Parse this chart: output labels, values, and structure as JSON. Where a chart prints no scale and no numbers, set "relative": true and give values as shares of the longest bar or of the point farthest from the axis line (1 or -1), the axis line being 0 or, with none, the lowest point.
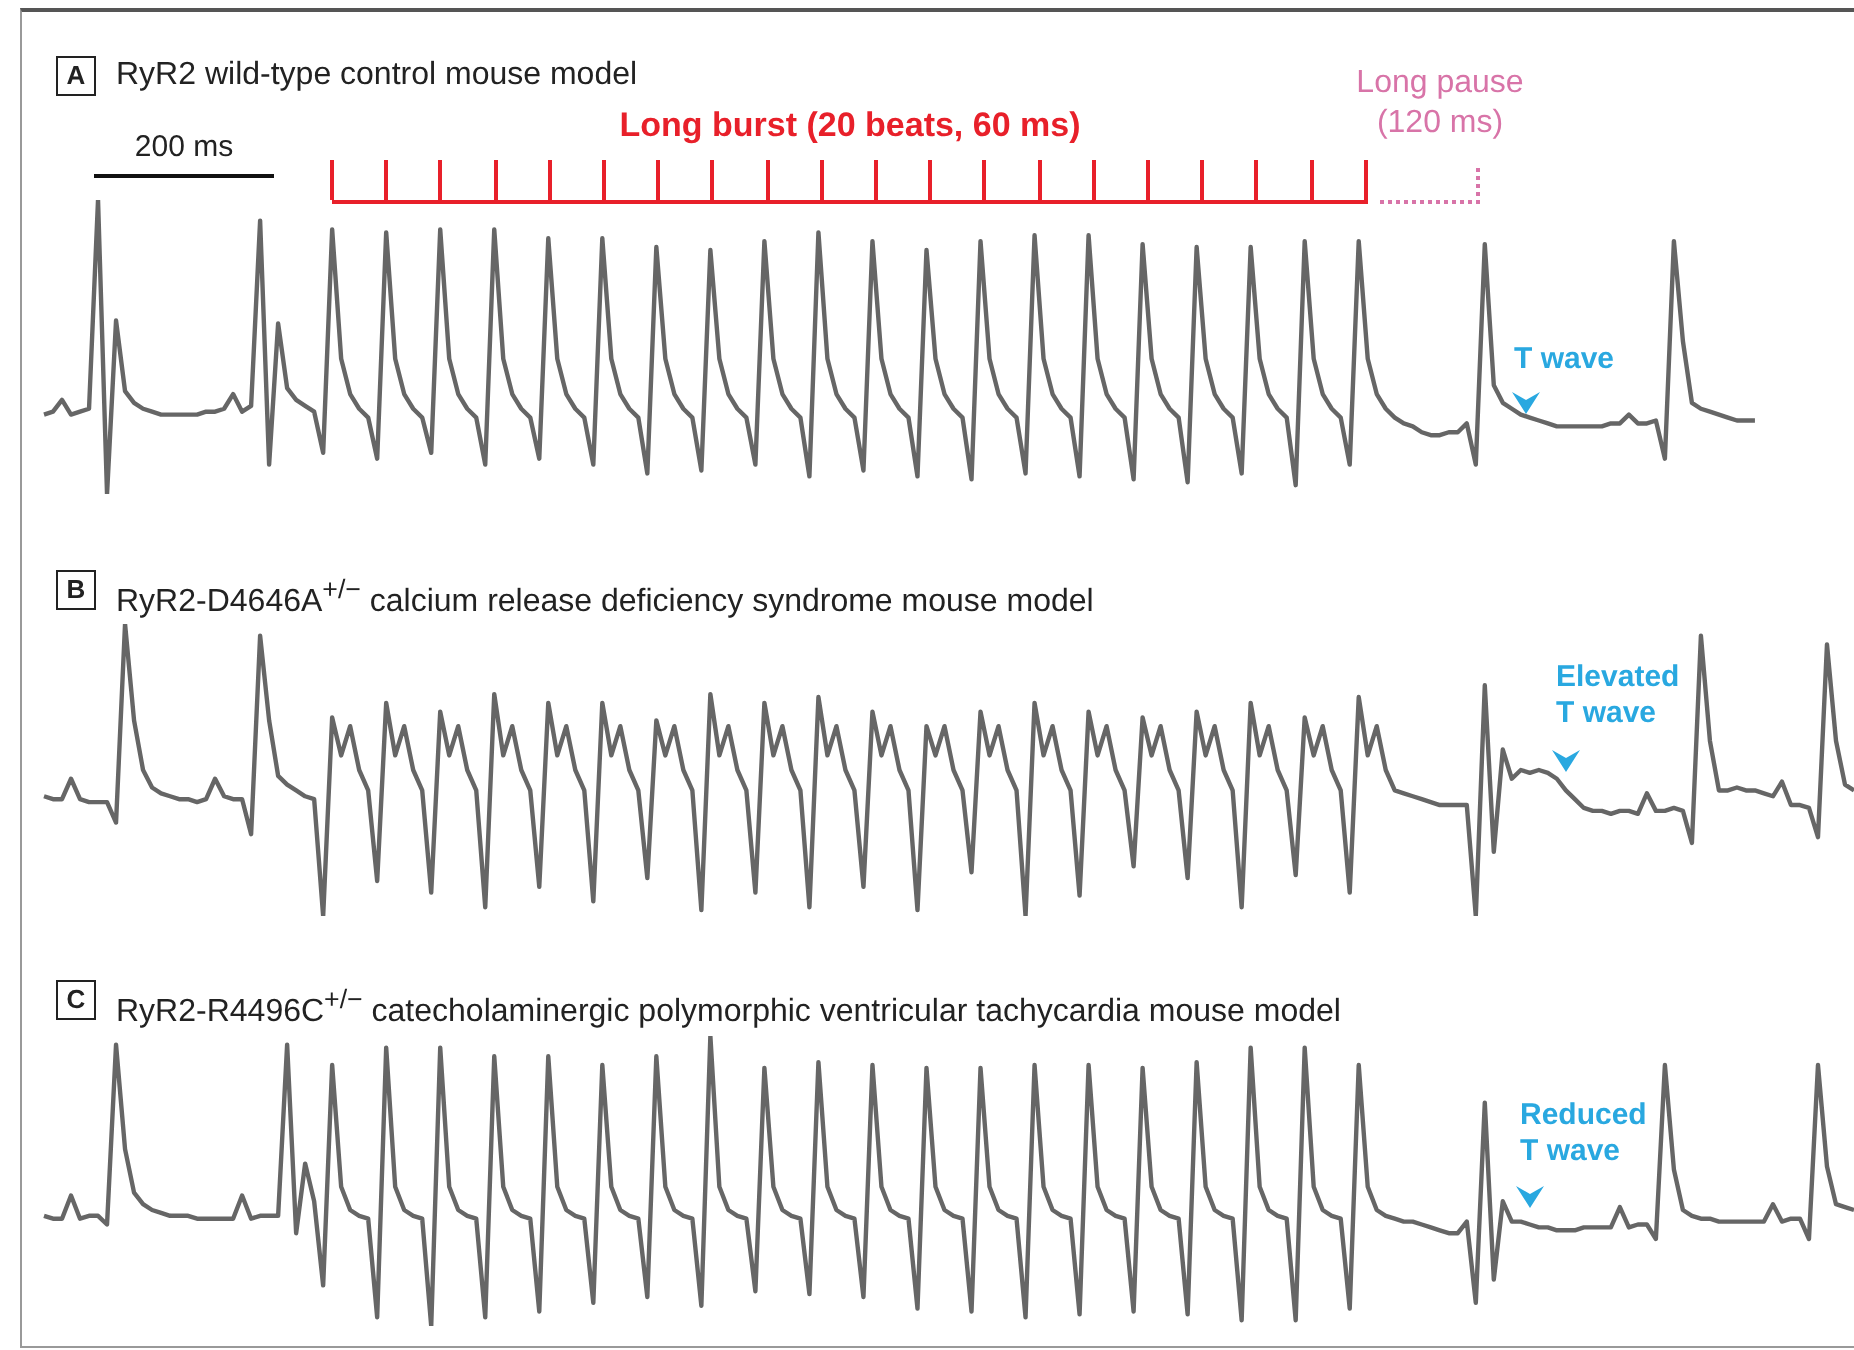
{
  "chart_data": [
    {
      "type": "line",
      "title": "RyR2 wild-type control mouse model",
      "relative": true,
      "color": "#666666",
      "annotations": [
        "A",
        "200 ms",
        "Long burst (20 beats, 60 ms)",
        "Long pause (120 ms)",
        "T wave"
      ],
      "categories": [
        null,
        null,
        null,
        null,
        null,
        null,
        null,
        null,
        null,
        null,
        null,
        null,
        null,
        null,
        null,
        null,
        null,
        null,
        null,
        null,
        null,
        null,
        null,
        null,
        null,
        null,
        null,
        null,
        null,
        null,
        null,
        null,
        null,
        null,
        null,
        null,
        null,
        null,
        null,
        null,
        null,
        null,
        null,
        null,
        null,
        null,
        null,
        null,
        null,
        null,
        null,
        null,
        null,
        null,
        null,
        null,
        null,
        null,
        null,
        null,
        null,
        null,
        null,
        null,
        null,
        null,
        null,
        null,
        null,
        null,
        null,
        null,
        null,
        null,
        null,
        null,
        null,
        null,
        null,
        null,
        null,
        null,
        null,
        null,
        null,
        null,
        null,
        null,
        null,
        null,
        null,
        null,
        null,
        null,
        null,
        null,
        null,
        null,
        null,
        null,
        null,
        null,
        null,
        null,
        null,
        null,
        null,
        null,
        null,
        null,
        null,
        null,
        null,
        null,
        null,
        null,
        null,
        null,
        null,
        null,
        null,
        null,
        null,
        null,
        null,
        null,
        null,
        null,
        null,
        null,
        null,
        null,
        null,
        null,
        null,
        null,
        null,
        null,
        null,
        null,
        null,
        null,
        null,
        null,
        null,
        null,
        null,
        null,
        null,
        null,
        null,
        null,
        null,
        null,
        null,
        null,
        null,
        null,
        null,
        null,
        null,
        null,
        null,
        null,
        null,
        null,
        null,
        null,
        null,
        null,
        null,
        null,
        null,
        null,
        null,
        null,
        null,
        null,
        null,
        null,
        null,
        null,
        null,
        null,
        null,
        null,
        null,
        null,
        null,
        null,
        null,
        null,
        null,
        null,
        null,
        null,
        null,
        null,
        null,
        null,
        null,
        null
      ],
      "values": [
        0.27,
        0.28,
        0.32,
        0.27,
        0.28,
        0.29,
        1.0,
        0,
        0.59,
        0.35,
        0.31,
        0.29,
        0.28,
        0.27,
        0.27,
        0.27,
        0.27,
        0.27,
        0.28,
        0.28,
        0.29,
        0.34,
        0.28,
        0.3,
        0.93,
        0.1,
        0.58,
        0.36,
        0.32,
        0.3,
        0.28,
        0.14,
        0.9,
        0.46,
        0.34,
        0.29,
        0.26,
        0.12,
        0.89,
        0.46,
        0.34,
        0.29,
        0.26,
        0.14,
        0.9,
        0.46,
        0.34,
        0.29,
        0.26,
        0.1,
        0.9,
        0.46,
        0.34,
        0.29,
        0.26,
        0.12,
        0.87,
        0.46,
        0.34,
        0.29,
        0.26,
        0.1,
        0.87,
        0.46,
        0.34,
        0.29,
        0.26,
        0.07,
        0.84,
        0.46,
        0.34,
        0.29,
        0.26,
        0.08,
        0.83,
        0.46,
        0.34,
        0.29,
        0.26,
        0.1,
        0.86,
        0.46,
        0.34,
        0.29,
        0.26,
        0.06,
        0.89,
        0.46,
        0.34,
        0.29,
        0.26,
        0.08,
        0.86,
        0.46,
        0.34,
        0.29,
        0.26,
        0.06,
        0.83,
        0.46,
        0.34,
        0.29,
        0.26,
        0.05,
        0.86,
        0.46,
        0.34,
        0.29,
        0.26,
        0.07,
        0.88,
        0.46,
        0.34,
        0.29,
        0.26,
        0.06,
        0.88,
        0.46,
        0.34,
        0.29,
        0.26,
        0.05,
        0.85,
        0.46,
        0.34,
        0.29,
        0.26,
        0.04,
        0.84,
        0.46,
        0.34,
        0.29,
        0.26,
        0.07,
        0.84,
        0.46,
        0.34,
        0.29,
        0.26,
        0.03,
        0.86,
        0.46,
        0.34,
        0.29,
        0.26,
        0.1,
        0.86,
        0.46,
        0.34,
        0.29,
        0.26,
        0.24,
        0.23,
        0.21,
        0.2,
        0.2,
        0.21,
        0.21,
        0.24,
        0.1,
        0.85,
        0.37,
        0.31,
        0.29,
        0.27,
        0.26,
        0.25,
        0.24,
        0.23,
        0.23,
        0.23,
        0.23,
        0.23,
        0.23,
        0.24,
        0.24,
        0.27,
        0.24,
        0.24,
        0.25,
        0.12,
        0.86,
        0.52,
        0.31,
        0.29,
        0.28,
        0.27,
        0.26,
        0.25,
        0.25,
        0.25,
        null,
        null,
        null,
        null,
        null,
        null,
        null,
        null,
        null,
        null,
        null
      ]
    },
    {
      "type": "line",
      "title": "RyR2-D4646A$^{+/−}$ calcium release deficiency syndrome mouse model",
      "relative": true,
      "color": "#666666",
      "annotations": [
        "B",
        "Elevated T wave"
      ],
      "categories": [
        null,
        null,
        null,
        null,
        null,
        null,
        null,
        null,
        null,
        null,
        null,
        null,
        null,
        null,
        null,
        null,
        null,
        null,
        null,
        null,
        null,
        null,
        null,
        null,
        null,
        null,
        null,
        null,
        null,
        null,
        null,
        null,
        null,
        null,
        null,
        null,
        null,
        null,
        null,
        null,
        null,
        null,
        null,
        null,
        null,
        null,
        null,
        null,
        null,
        null,
        null,
        null,
        null,
        null,
        null,
        null,
        null,
        null,
        null,
        null,
        null,
        null,
        null,
        null,
        null,
        null,
        null,
        null,
        null,
        null,
        null,
        null,
        null,
        null,
        null,
        null,
        null,
        null,
        null,
        null,
        null,
        null,
        null,
        null,
        null,
        null,
        null,
        null,
        null,
        null,
        null,
        null,
        null,
        null,
        null,
        null,
        null,
        null,
        null,
        null,
        null,
        null,
        null,
        null,
        null,
        null,
        null,
        null,
        null,
        null,
        null,
        null,
        null,
        null,
        null,
        null,
        null,
        null,
        null,
        null,
        null,
        null,
        null,
        null,
        null,
        null,
        null,
        null,
        null,
        null,
        null,
        null,
        null,
        null,
        null,
        null,
        null,
        null,
        null,
        null,
        null,
        null,
        null,
        null,
        null,
        null,
        null,
        null,
        null,
        null,
        null,
        null,
        null,
        null,
        null,
        null,
        null,
        null,
        null,
        null,
        null,
        null,
        null,
        null,
        null,
        null,
        null,
        null,
        null,
        null,
        null,
        null,
        null,
        null,
        null,
        null,
        null,
        null,
        null,
        null,
        null,
        null,
        null,
        null,
        null,
        null,
        null,
        null,
        null,
        null,
        null,
        null,
        null,
        null,
        null,
        null,
        null,
        null,
        null,
        null,
        null,
        null
      ],
      "values": [
        0.41,
        0.4,
        0.4,
        0.47,
        0.4,
        0.39,
        0.39,
        0.39,
        0.32,
        1.0,
        0.67,
        0.5,
        0.44,
        0.42,
        0.41,
        0.4,
        0.4,
        0.39,
        0.4,
        0.47,
        0.41,
        0.4,
        0.4,
        0.28,
        0.96,
        0.67,
        0.48,
        0.45,
        0.43,
        0.41,
        0.4,
        0.0,
        0.68,
        0.55,
        0.65,
        0.5,
        0.43,
        0.12,
        0.73,
        0.55,
        0.65,
        0.5,
        0.43,
        0.08,
        0.7,
        0.55,
        0.65,
        0.5,
        0.43,
        0.03,
        0.76,
        0.55,
        0.65,
        0.5,
        0.43,
        0.1,
        0.73,
        0.55,
        0.65,
        0.5,
        0.43,
        0.05,
        0.73,
        0.55,
        0.65,
        0.5,
        0.43,
        0.13,
        0.67,
        0.55,
        0.65,
        0.5,
        0.43,
        0.02,
        0.76,
        0.55,
        0.65,
        0.5,
        0.43,
        0.08,
        0.73,
        0.55,
        0.65,
        0.5,
        0.43,
        0.03,
        0.75,
        0.55,
        0.65,
        0.5,
        0.43,
        0.1,
        0.7,
        0.55,
        0.65,
        0.5,
        0.43,
        0.02,
        0.65,
        0.55,
        0.65,
        0.5,
        0.43,
        0.15,
        0.7,
        0.55,
        0.65,
        0.5,
        0.43,
        0.0,
        0.73,
        0.55,
        0.65,
        0.5,
        0.43,
        0.07,
        0.7,
        0.55,
        0.65,
        0.5,
        0.43,
        0.17,
        0.68,
        0.55,
        0.65,
        0.5,
        0.43,
        0.13,
        0.7,
        0.55,
        0.65,
        0.5,
        0.43,
        0.03,
        0.73,
        0.55,
        0.65,
        0.5,
        0.43,
        0.14,
        0.68,
        0.55,
        0.65,
        0.5,
        0.43,
        0.08,
        0.75,
        0.55,
        0.65,
        0.5,
        0.43,
        0.42,
        0.41,
        0.4,
        0.39,
        0.38,
        0.38,
        0.38,
        0.38,
        0.0,
        0.79,
        0.22,
        0.57,
        0.47,
        0.5,
        0.49,
        0.5,
        0.49,
        0.47,
        0.43,
        0.4,
        0.37,
        0.36,
        0.36,
        0.35,
        0.36,
        0.36,
        0.35,
        0.42,
        0.36,
        0.36,
        0.37,
        0.36,
        0.25,
        0.96,
        0.6,
        0.43,
        0.43,
        0.44,
        0.43,
        0.43,
        0.42,
        0.41,
        0.46,
        0.38,
        0.38,
        0.37,
        0.27,
        0.93,
        0.6,
        0.45,
        0.43
      ]
    },
    {
      "type": "line",
      "title": "RyR2-R4496C$^{+/−}$ catecholaminergic polymorphic ventricular tachycardia mouse model",
      "relative": true,
      "color": "#666666",
      "annotations": [
        "C",
        "Reduced T wave"
      ],
      "categories": [
        null,
        null,
        null,
        null,
        null,
        null,
        null,
        null,
        null,
        null,
        null,
        null,
        null,
        null,
        null,
        null,
        null,
        null,
        null,
        null,
        null,
        null,
        null,
        null,
        null,
        null,
        null,
        null,
        null,
        null,
        null,
        null,
        null,
        null,
        null,
        null,
        null,
        null,
        null,
        null,
        null,
        null,
        null,
        null,
        null,
        null,
        null,
        null,
        null,
        null,
        null,
        null,
        null,
        null,
        null,
        null,
        null,
        null,
        null,
        null,
        null,
        null,
        null,
        null,
        null,
        null,
        null,
        null,
        null,
        null,
        null,
        null,
        null,
        null,
        null,
        null,
        null,
        null,
        null,
        null,
        null,
        null,
        null,
        null,
        null,
        null,
        null,
        null,
        null,
        null,
        null,
        null,
        null,
        null,
        null,
        null,
        null,
        null,
        null,
        null,
        null,
        null,
        null,
        null,
        null,
        null,
        null,
        null,
        null,
        null,
        null,
        null,
        null,
        null,
        null,
        null,
        null,
        null,
        null,
        null,
        null,
        null,
        null,
        null,
        null,
        null,
        null,
        null,
        null,
        null,
        null,
        null,
        null,
        null,
        null,
        null,
        null,
        null,
        null,
        null,
        null,
        null,
        null,
        null,
        null,
        null,
        null,
        null,
        null,
        null,
        null,
        null,
        null,
        null,
        null,
        null,
        null,
        null,
        null,
        null,
        null,
        null,
        null,
        null,
        null,
        null,
        null,
        null,
        null,
        null,
        null,
        null,
        null,
        null,
        null,
        null,
        null,
        null,
        null,
        null,
        null,
        null,
        null,
        null,
        null,
        null,
        null,
        null,
        null,
        null,
        null,
        null,
        null,
        null,
        null,
        null,
        null,
        null,
        null,
        null,
        null,
        null
      ],
      "values": [
        0.38,
        0.37,
        0.37,
        0.45,
        0.37,
        0.38,
        0.38,
        0.35,
        0.97,
        0.61,
        0.46,
        0.42,
        0.4,
        0.39,
        0.38,
        0.38,
        0.38,
        0.37,
        0.37,
        0.37,
        0.37,
        0.37,
        0.45,
        0.37,
        0.38,
        0.38,
        0.38,
        0.97,
        0.32,
        0.56,
        0.43,
        0.14,
        0.9,
        0.48,
        0.4,
        0.38,
        0.37,
        0.03,
        0.96,
        0.48,
        0.4,
        0.38,
        0.37,
        0.0,
        0.96,
        0.48,
        0.4,
        0.38,
        0.37,
        0.03,
        0.93,
        0.48,
        0.4,
        0.38,
        0.37,
        0.05,
        0.93,
        0.48,
        0.4,
        0.38,
        0.37,
        0.08,
        0.9,
        0.48,
        0.4,
        0.38,
        0.37,
        0.1,
        0.93,
        0.48,
        0.4,
        0.38,
        0.37,
        0.07,
        1.0,
        0.48,
        0.4,
        0.38,
        0.37,
        0.12,
        0.89,
        0.48,
        0.4,
        0.38,
        0.37,
        0.11,
        0.91,
        0.48,
        0.4,
        0.38,
        0.37,
        0.1,
        0.9,
        0.48,
        0.4,
        0.38,
        0.37,
        0.06,
        0.89,
        0.48,
        0.4,
        0.38,
        0.37,
        0.05,
        0.89,
        0.48,
        0.4,
        0.38,
        0.37,
        0.03,
        0.9,
        0.48,
        0.4,
        0.38,
        0.37,
        0.04,
        0.9,
        0.48,
        0.4,
        0.38,
        0.37,
        0.05,
        0.89,
        0.48,
        0.4,
        0.38,
        0.37,
        0.04,
        0.91,
        0.48,
        0.4,
        0.38,
        0.37,
        0.02,
        0.96,
        0.48,
        0.4,
        0.38,
        0.37,
        0.02,
        0.96,
        0.48,
        0.4,
        0.38,
        0.37,
        0.06,
        0.9,
        0.48,
        0.4,
        0.38,
        0.37,
        0.36,
        0.36,
        0.35,
        0.34,
        0.33,
        0.32,
        0.32,
        0.36,
        0.08,
        0.77,
        0.16,
        0.43,
        0.36,
        0.36,
        0.35,
        0.34,
        0.34,
        0.33,
        0.33,
        0.33,
        0.34,
        0.34,
        0.34,
        0.34,
        0.41,
        0.34,
        0.35,
        0.35,
        0.3,
        0.9,
        0.54,
        0.4,
        0.38,
        0.37,
        0.37,
        0.36,
        0.36,
        0.36,
        0.36,
        0.36,
        0.36,
        0.42,
        0.36,
        0.37,
        0.37,
        0.3,
        0.9,
        0.55,
        0.42,
        0.41,
        0.4
      ]
    }
  ]
}
